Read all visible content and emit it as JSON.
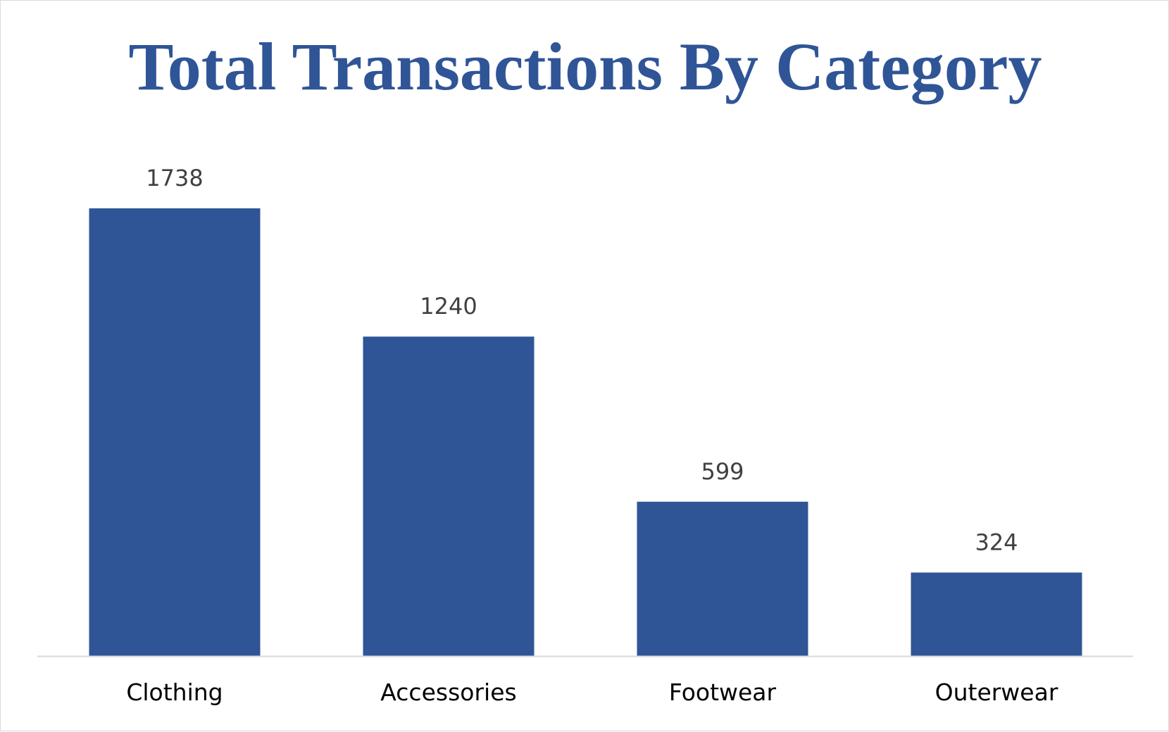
{
  "chart_data": {
    "type": "bar",
    "title": "Total Transactions By Category",
    "xlabel": "",
    "ylabel": "",
    "categories": [
      "Clothing",
      "Accessories",
      "Footwear",
      "Outerwear"
    ],
    "values": [
      1738,
      1240,
      599,
      324
    ],
    "data_labels": [
      "1738",
      "1240",
      "599",
      "324"
    ],
    "ylim": [
      0,
      1738
    ],
    "grid": false,
    "legend": "none",
    "bar_color": "#2f5597",
    "axis_color": "#d9d9d9"
  }
}
